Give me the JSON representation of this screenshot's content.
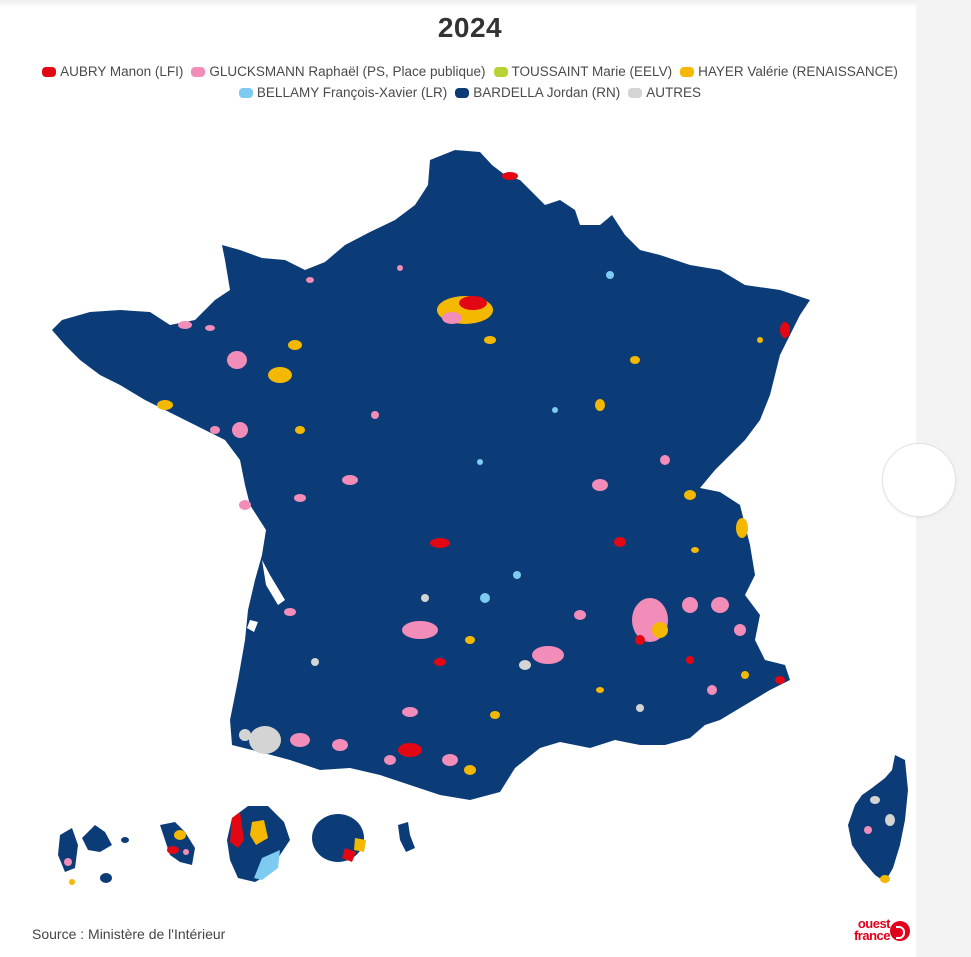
{
  "title": "2024",
  "legend": [
    {
      "label": "AUBRY Manon (LFI)",
      "color": "#e30613"
    },
    {
      "label": "GLUCKSMANN Raphaël (PS, Place publique)",
      "color": "#f28cb8"
    },
    {
      "label": "TOUSSAINT Marie (EELV)",
      "color": "#b5d334"
    },
    {
      "label": "HAYER Valérie (RENAISSANCE)",
      "color": "#f5b800"
    },
    {
      "label": "BELLAMY François-Xavier (LR)",
      "color": "#7dcbf0"
    },
    {
      "label": "BARDELLA Jordan (RN)",
      "color": "#0c3c78"
    },
    {
      "label": "AUTRES",
      "color": "#d4d4d4"
    }
  ],
  "map": {
    "base_color": "#0c3c78",
    "regions": [
      "France métropolitaine",
      "Corse",
      "Guadeloupe",
      "Martinique",
      "Guyane",
      "La Réunion",
      "Mayotte"
    ]
  },
  "source": "Source : Ministère de l'Intérieur",
  "logo": {
    "line1": "ouest",
    "line2": "france"
  }
}
